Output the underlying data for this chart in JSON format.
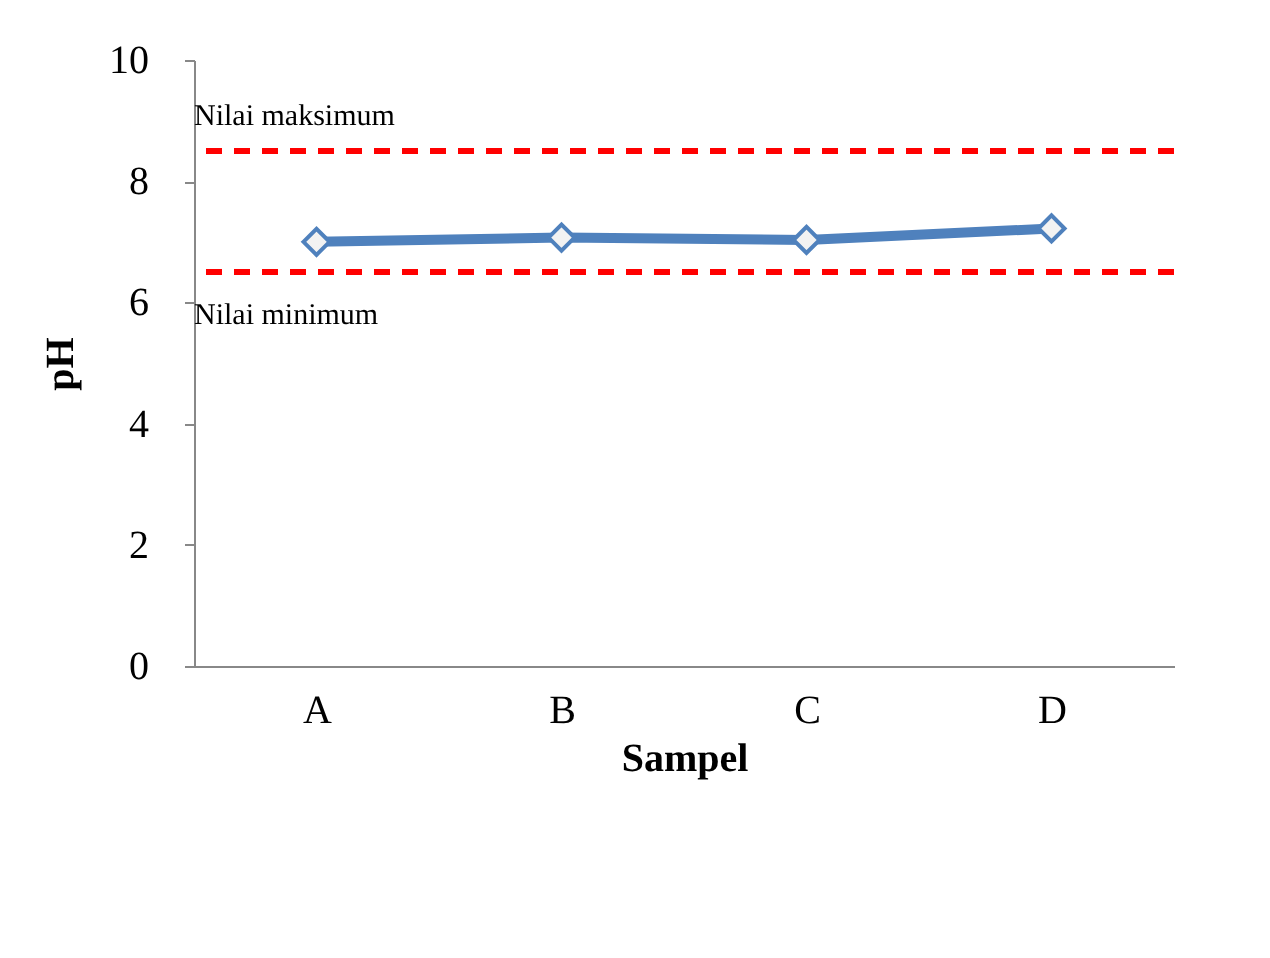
{
  "chart_data": {
    "type": "line",
    "xlabel": "Sampel",
    "ylabel": "pH",
    "categories": [
      "A",
      "B",
      "C",
      "D"
    ],
    "series": [
      {
        "color": "#4f81bd",
        "values": [
          7.0,
          7.07,
          7.03,
          7.22
        ]
      }
    ],
    "ylim": [
      0,
      10
    ],
    "yticks": [
      0,
      2,
      4,
      6,
      8,
      10
    ],
    "grid": false,
    "marker": "diamond",
    "line_style": "solid",
    "ref_lines": [
      {
        "axis": "y",
        "value": 8.5,
        "label": "Nilai maksimum",
        "color": "#ff0000",
        "line_style": "dashed"
      },
      {
        "axis": "y",
        "value": 6.5,
        "label": "Nilai minimum",
        "color": "#ff0000",
        "line_style": "dashed"
      }
    ]
  }
}
